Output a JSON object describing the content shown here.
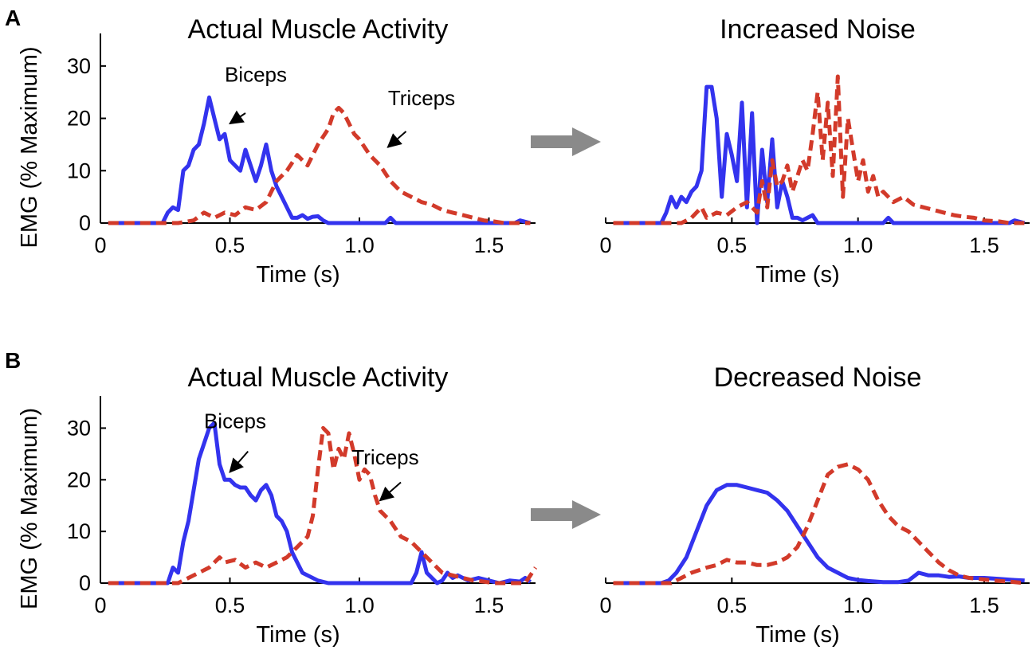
{
  "colors": {
    "biceps": "#3333ee",
    "triceps": "#d23a2a",
    "arrow": "#8a8a8a",
    "axis": "#000000"
  },
  "panel_labels": [
    "A",
    "B"
  ],
  "chart_data": [
    {
      "id": "A-left",
      "type": "line",
      "panel": "A",
      "side": "left",
      "title": "Actual Muscle Activity",
      "xlabel": "Time (s)",
      "ylabel": "EMG (% Maximum)",
      "xlim": [
        0,
        1.68
      ],
      "ylim": [
        0,
        35
      ],
      "xticks": [
        0,
        0.5,
        1.0,
        1.5
      ],
      "xtick_labels": [
        "0",
        "0.5",
        "1.0",
        "1.5"
      ],
      "yticks": [
        0,
        10,
        20,
        30
      ],
      "ytick_labels": [
        "0",
        "10",
        "20",
        "30"
      ],
      "show_y_axis": true,
      "annotations": [
        {
          "text": "Biceps",
          "series": "Biceps",
          "text_at": [
            0.6,
            27
          ],
          "arrow_from": [
            0.56,
            21
          ],
          "arrow_to": [
            0.5,
            19
          ]
        },
        {
          "text": "Triceps",
          "series": "Triceps",
          "text_at": [
            1.24,
            22.5
          ],
          "arrow_from": [
            1.18,
            17.5
          ],
          "arrow_to": [
            1.11,
            14.5
          ]
        }
      ],
      "series": [
        {
          "name": "Biceps",
          "style": "solid",
          "x": [
            0.03,
            0.24,
            0.26,
            0.28,
            0.3,
            0.32,
            0.34,
            0.36,
            0.38,
            0.4,
            0.42,
            0.44,
            0.46,
            0.48,
            0.5,
            0.52,
            0.54,
            0.56,
            0.58,
            0.6,
            0.62,
            0.64,
            0.66,
            0.68,
            0.7,
            0.72,
            0.74,
            0.76,
            0.78,
            0.8,
            0.82,
            0.84,
            0.86,
            0.88,
            1.1,
            1.12,
            1.14,
            1.6,
            1.62,
            1.66
          ],
          "y": [
            0,
            0,
            2,
            3,
            2.5,
            10,
            11,
            14,
            15,
            19,
            24,
            20,
            16,
            17,
            12,
            11,
            10,
            14,
            11,
            8,
            11,
            15,
            10,
            7,
            5,
            3,
            1,
            1,
            1.5,
            0.8,
            1.2,
            1.3,
            0.5,
            0,
            0,
            1,
            0,
            0,
            0.5,
            0
          ]
        },
        {
          "name": "Triceps",
          "style": "dashed",
          "x": [
            0.03,
            0.3,
            0.36,
            0.4,
            0.44,
            0.48,
            0.52,
            0.56,
            0.6,
            0.64,
            0.68,
            0.72,
            0.76,
            0.8,
            0.84,
            0.88,
            0.9,
            0.92,
            0.94,
            0.96,
            0.98,
            1.0,
            1.04,
            1.08,
            1.12,
            1.16,
            1.2,
            1.24,
            1.28,
            1.32,
            1.36,
            1.4,
            1.44,
            1.48,
            1.52,
            1.56,
            1.6,
            1.66
          ],
          "y": [
            0,
            0,
            0.5,
            2,
            1,
            2,
            1.5,
            3,
            2.5,
            4,
            8,
            10,
            13,
            11,
            15,
            18,
            21,
            22,
            21,
            19,
            17,
            16,
            13,
            11,
            8,
            6,
            5,
            4,
            3.5,
            2.5,
            2,
            1.5,
            1,
            0.5,
            0.3,
            0,
            0,
            0
          ]
        }
      ]
    },
    {
      "id": "A-right",
      "type": "line",
      "panel": "A",
      "side": "right",
      "title": "Increased Noise",
      "xlabel": "Time (s)",
      "ylabel": "",
      "xlim": [
        0,
        1.68
      ],
      "ylim": [
        0,
        35
      ],
      "xticks": [
        0,
        0.5,
        1.0,
        1.5
      ],
      "xtick_labels": [
        "0",
        "0.5",
        "1.0",
        "1.5"
      ],
      "yticks": [],
      "ytick_labels": [],
      "show_y_axis": false,
      "annotations": [],
      "series": [
        {
          "name": "Biceps",
          "style": "solid",
          "x": [
            0.03,
            0.22,
            0.24,
            0.26,
            0.28,
            0.3,
            0.32,
            0.34,
            0.36,
            0.38,
            0.4,
            0.42,
            0.44,
            0.46,
            0.48,
            0.5,
            0.52,
            0.54,
            0.56,
            0.58,
            0.6,
            0.62,
            0.64,
            0.66,
            0.68,
            0.7,
            0.72,
            0.74,
            0.76,
            0.78,
            0.8,
            0.82,
            0.84,
            0.86,
            1.1,
            1.12,
            1.14,
            1.6,
            1.62,
            1.66
          ],
          "y": [
            0,
            0,
            2,
            5,
            3,
            5,
            4,
            6,
            7,
            10,
            26,
            26,
            20,
            5,
            17,
            13,
            8,
            23,
            3,
            21,
            0,
            14,
            4,
            16,
            3,
            8,
            5,
            1,
            1,
            0.5,
            1,
            1.5,
            0,
            0,
            0,
            1,
            0,
            0,
            0.5,
            0
          ]
        },
        {
          "name": "Triceps",
          "style": "dashed",
          "x": [
            0.03,
            0.3,
            0.34,
            0.38,
            0.4,
            0.44,
            0.48,
            0.52,
            0.56,
            0.6,
            0.62,
            0.64,
            0.66,
            0.68,
            0.7,
            0.72,
            0.74,
            0.76,
            0.78,
            0.8,
            0.82,
            0.84,
            0.86,
            0.88,
            0.9,
            0.92,
            0.94,
            0.96,
            0.98,
            1.0,
            1.02,
            1.04,
            1.06,
            1.08,
            1.1,
            1.14,
            1.18,
            1.22,
            1.26,
            1.3,
            1.34,
            1.38,
            1.42,
            1.46,
            1.5,
            1.56,
            1.6,
            1.66
          ],
          "y": [
            0,
            0,
            1,
            3,
            1,
            2,
            1.5,
            3,
            4,
            2,
            8,
            3,
            12,
            7,
            8,
            11,
            6,
            9,
            12,
            10,
            17,
            25,
            12,
            23,
            9,
            28,
            5,
            20,
            14,
            8,
            12,
            6,
            9,
            5,
            6,
            4,
            5,
            3.5,
            3,
            2.5,
            2,
            1.5,
            1.2,
            1,
            0.5,
            0.3,
            0,
            0
          ]
        }
      ]
    },
    {
      "id": "B-left",
      "type": "line",
      "panel": "B",
      "side": "left",
      "title": "Actual Muscle Activity",
      "xlabel": "Time (s)",
      "ylabel": "EMG (% Maximum)",
      "xlim": [
        0,
        1.68
      ],
      "ylim": [
        0,
        35
      ],
      "xticks": [
        0,
        0.5,
        1.0,
        1.5
      ],
      "xtick_labels": [
        "0",
        "0.5",
        "1.0",
        "1.5"
      ],
      "yticks": [
        0,
        10,
        20,
        30
      ],
      "ytick_labels": [
        "0",
        "10",
        "20",
        "30"
      ],
      "show_y_axis": true,
      "annotations": [
        {
          "text": "Biceps",
          "series": "Biceps",
          "text_at": [
            0.52,
            30
          ],
          "arrow_from": [
            0.57,
            25.5
          ],
          "arrow_to": [
            0.5,
            21.5
          ]
        },
        {
          "text": "Triceps",
          "series": "Triceps",
          "text_at": [
            1.1,
            23
          ],
          "arrow_from": [
            1.16,
            19.5
          ],
          "arrow_to": [
            1.08,
            16
          ]
        }
      ],
      "series": [
        {
          "name": "Biceps",
          "style": "solid",
          "x": [
            0.03,
            0.26,
            0.28,
            0.3,
            0.32,
            0.34,
            0.36,
            0.38,
            0.4,
            0.42,
            0.44,
            0.46,
            0.48,
            0.5,
            0.52,
            0.54,
            0.56,
            0.58,
            0.6,
            0.62,
            0.64,
            0.66,
            0.68,
            0.7,
            0.72,
            0.74,
            0.76,
            0.78,
            0.8,
            0.84,
            0.88,
            1.2,
            1.22,
            1.24,
            1.26,
            1.28,
            1.3,
            1.32,
            1.34,
            1.36,
            1.38,
            1.42,
            1.46,
            1.5,
            1.54,
            1.58,
            1.62,
            1.64,
            1.66
          ],
          "y": [
            0,
            0,
            3,
            2,
            8,
            12,
            18,
            24,
            27,
            30,
            31,
            23,
            20,
            20,
            19,
            18.5,
            18.5,
            17,
            16,
            18,
            19,
            17,
            13,
            12,
            10,
            6,
            4,
            2,
            1.5,
            0.5,
            0,
            0,
            2,
            6,
            2,
            1,
            0,
            0.5,
            2,
            1,
            1.5,
            0.5,
            1,
            0.5,
            0,
            0.5,
            0.3,
            1,
            0.2
          ]
        },
        {
          "name": "Triceps",
          "style": "dashed",
          "x": [
            0.03,
            0.3,
            0.34,
            0.38,
            0.42,
            0.46,
            0.48,
            0.52,
            0.56,
            0.6,
            0.64,
            0.68,
            0.72,
            0.76,
            0.8,
            0.82,
            0.84,
            0.86,
            0.88,
            0.9,
            0.92,
            0.94,
            0.96,
            0.98,
            1.0,
            1.02,
            1.04,
            1.06,
            1.08,
            1.12,
            1.16,
            1.2,
            1.24,
            1.28,
            1.32,
            1.36,
            1.4,
            1.44,
            1.48,
            1.52,
            1.56,
            1.6,
            1.64,
            1.66,
            1.68
          ],
          "y": [
            0,
            0,
            1,
            2,
            3,
            5,
            4,
            4.5,
            3,
            4,
            3,
            4,
            5,
            7,
            9,
            13,
            22,
            30,
            29,
            22,
            26,
            24,
            29,
            25,
            20,
            22,
            21,
            17,
            14,
            12,
            9,
            8,
            6,
            4,
            2,
            1.5,
            1,
            0.5,
            0.3,
            0,
            0,
            0,
            0,
            1.5,
            3
          ]
        }
      ]
    },
    {
      "id": "B-right",
      "type": "line",
      "panel": "B",
      "side": "right",
      "title": "Decreased Noise",
      "xlabel": "Time (s)",
      "ylabel": "",
      "xlim": [
        0,
        1.68
      ],
      "ylim": [
        0,
        35
      ],
      "xticks": [
        0,
        0.5,
        1.0,
        1.5
      ],
      "xtick_labels": [
        "0",
        "0.5",
        "1.0",
        "1.5"
      ],
      "yticks": [],
      "ytick_labels": [],
      "show_y_axis": false,
      "annotations": [],
      "series": [
        {
          "name": "Biceps",
          "style": "solid",
          "x": [
            0.03,
            0.22,
            0.25,
            0.28,
            0.32,
            0.36,
            0.4,
            0.44,
            0.48,
            0.52,
            0.56,
            0.6,
            0.64,
            0.68,
            0.72,
            0.76,
            0.8,
            0.84,
            0.88,
            0.92,
            0.96,
            1.0,
            1.04,
            1.1,
            1.16,
            1.2,
            1.24,
            1.28,
            1.32,
            1.36,
            1.4,
            1.44,
            1.5,
            1.56,
            1.62,
            1.66
          ],
          "y": [
            0,
            0,
            0.5,
            2,
            5,
            10,
            15,
            18,
            19,
            19,
            18.5,
            18,
            17.5,
            16,
            14,
            11,
            8,
            5,
            3,
            2,
            1,
            0.6,
            0.4,
            0.2,
            0.2,
            0.5,
            2,
            1.5,
            1.5,
            1.2,
            1.3,
            1,
            1,
            0.8,
            0.6,
            0.5
          ]
        },
        {
          "name": "Triceps",
          "style": "dashed",
          "x": [
            0.03,
            0.2,
            0.26,
            0.3,
            0.34,
            0.4,
            0.44,
            0.48,
            0.52,
            0.56,
            0.6,
            0.64,
            0.68,
            0.72,
            0.76,
            0.8,
            0.84,
            0.88,
            0.92,
            0.96,
            1.0,
            1.04,
            1.08,
            1.12,
            1.16,
            1.2,
            1.24,
            1.28,
            1.32,
            1.36,
            1.4,
            1.44,
            1.48,
            1.54,
            1.6,
            1.66
          ],
          "y": [
            0,
            0,
            0,
            1,
            2,
            3,
            3.5,
            4.5,
            4,
            4,
            3.5,
            3.5,
            4,
            5,
            7,
            11,
            16,
            21,
            22.5,
            23,
            22,
            20,
            16,
            13,
            11,
            10,
            8,
            6,
            4,
            2.5,
            1.5,
            1,
            0.8,
            0.5,
            0.3,
            0
          ]
        }
      ]
    }
  ]
}
